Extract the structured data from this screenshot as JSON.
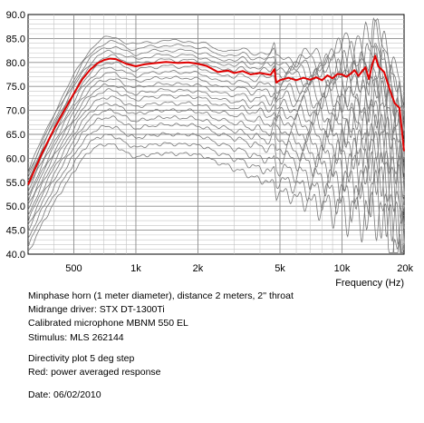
{
  "chart_data": {
    "type": "line",
    "xlabel": "Frequency (Hz)",
    "ylabel": "",
    "x_scale": "log",
    "xlim": [
      300,
      20000
    ],
    "ylim": [
      40,
      90
    ],
    "grid": true,
    "y_ticks": [
      "90.0",
      "85.0",
      "80.0",
      "75.0",
      "70.0",
      "65.0",
      "60.0",
      "55.0",
      "50.0",
      "45.0",
      "40.0"
    ],
    "x_ticks": [
      {
        "value": 500,
        "label": "500"
      },
      {
        "value": 1000,
        "label": "1k"
      },
      {
        "value": 2000,
        "label": "2k"
      },
      {
        "value": 5000,
        "label": "5k"
      },
      {
        "value": 10000,
        "label": "10k"
      },
      {
        "value": 20000,
        "label": "20k"
      }
    ],
    "colors": {
      "highlight": "#e00000",
      "family": "#7a7a7a",
      "grid": "#9a9a9a"
    },
    "series": [
      {
        "role": "power-averaged-response",
        "x": [
          300,
          350,
          400,
          450,
          500,
          550,
          600,
          650,
          700,
          750,
          800,
          900,
          1000,
          1100,
          1200,
          1400,
          1600,
          1800,
          2000,
          2200,
          2500,
          2800,
          3000,
          3300,
          3600,
          4000,
          4500,
          4700,
          4800,
          5000,
          5500,
          6000,
          6500,
          7000,
          7500,
          8000,
          8500,
          9000,
          9500,
          10000,
          10500,
          11000,
          11500,
          12000,
          12500,
          13000,
          13500,
          14000,
          14500,
          15000,
          16000,
          17000,
          18000,
          19000,
          20000
        ],
        "y": [
          54.5,
          61,
          66,
          70,
          73.5,
          76.5,
          78.5,
          79.8,
          80.5,
          80.8,
          80.7,
          79.7,
          79.2,
          79.6,
          79.8,
          80.1,
          79.9,
          80,
          79.7,
          79.3,
          78,
          78.3,
          77.8,
          78.2,
          77.5,
          77.8,
          77.4,
          78.6,
          75.8,
          76.3,
          76.8,
          76.3,
          76.8,
          76.4,
          76.9,
          76.3,
          77.3,
          76.7,
          77.6,
          77.5,
          77,
          77.6,
          78.4,
          77.2,
          78.1,
          79,
          76.5,
          79.5,
          81.4,
          79.2,
          78,
          74.5,
          71.5,
          70.5,
          61.5
        ]
      }
    ]
  },
  "notes": {
    "line1": "Minphase horn (1 meter diameter), distance 2 meters, 2'' throat",
    "line2": "Midrange driver: STX DT-1300Ti",
    "line3": "Calibrated microphone MBNM 550 EL",
    "line4": "Stimulus: MLS 262144",
    "line5": "Directivity plot 5 deg step",
    "line6": "Red: power averaged response",
    "line7": "Date: 06/02/2010"
  }
}
